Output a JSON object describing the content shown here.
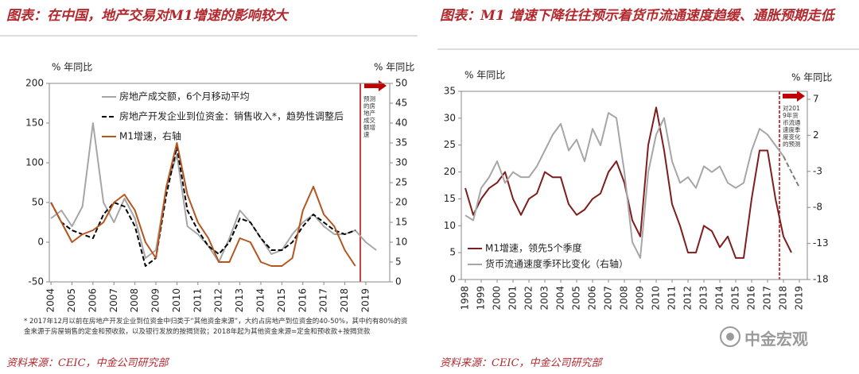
{
  "chart_data": [
    {
      "type": "line",
      "title": "图表：在中国，地产交易对M1增速的影响较大",
      "y_label": "% 年同比",
      "y2_label": "% 年同比",
      "annotation": "预测的房地产成交额增速",
      "footnote": "* 2017年12月以前在房地产开发企业到位资金中归类于“其他资金来源”，大约占房地产到位资金的40-50%，其中约有80%的资金来源于房屋销售的定金和预收款，以及银行发放的按揭贷款；2018年起为其他资金来源=定金和预收款+按揭贷款",
      "source": "资料来源：CEIC，中金公司研究部",
      "x": [
        2004,
        2004.5,
        2005,
        2005.5,
        2006,
        2006.5,
        2007,
        2007.5,
        2008,
        2008.5,
        2009,
        2009.5,
        2010,
        2010.5,
        2011,
        2011.5,
        2012,
        2012.5,
        2013,
        2013.5,
        2014,
        2014.5,
        2015,
        2015.5,
        2016,
        2016.5,
        2017,
        2017.5,
        2018,
        2018.5,
        2019,
        2019.5
      ],
      "xlim": [
        2003.92,
        2020.14
      ],
      "xticks": [
        2004,
        2005,
        2006,
        2007,
        2008,
        2009,
        2010,
        2011,
        2012,
        2013,
        2014,
        2015,
        2016,
        2017,
        2018,
        2019
      ],
      "ylim": [
        -50,
        200
      ],
      "yticks": [
        -50,
        0,
        50,
        100,
        150,
        200
      ],
      "y2lim": [
        0,
        50
      ],
      "y2ticks": [
        0,
        5,
        10,
        15,
        20,
        25,
        30,
        35,
        40,
        45,
        50
      ],
      "series": [
        {
          "name": "房地产成交额，6个月移动平均",
          "color": "#a6a6a6",
          "values": [
            30,
            40,
            20,
            45,
            150,
            50,
            25,
            55,
            30,
            -20,
            -10,
            70,
            110,
            20,
            10,
            -5,
            -25,
            5,
            40,
            25,
            5,
            -15,
            -10,
            10,
            25,
            35,
            20,
            10,
            10,
            15,
            0,
            -10
          ]
        },
        {
          "name": "房地产开发企业到位资金：销售收入*，趋势性调整后",
          "color": "#000000",
          "dash": true,
          "values": [
            50,
            25,
            15,
            10,
            5,
            35,
            50,
            45,
            20,
            -30,
            -20,
            60,
            120,
            40,
            15,
            -5,
            -15,
            0,
            30,
            25,
            5,
            -10,
            -10,
            0,
            20,
            35,
            25,
            15,
            10,
            15,
            null,
            null
          ]
        },
        {
          "name": "M1增速，右轴",
          "color": "#b5561f",
          "axis": "y2",
          "values": [
            20,
            15,
            10,
            12,
            13,
            15,
            20,
            22,
            18,
            10,
            6,
            24,
            35,
            22,
            15,
            11,
            5,
            5,
            11,
            10,
            5,
            4,
            4,
            6,
            18,
            24,
            17,
            14,
            8,
            4,
            null,
            null
          ]
        }
      ]
    },
    {
      "type": "line",
      "title": "图表：M1 增速下降往往预示着货币流通速度趋缓、通胀预期走低",
      "y_label": "% 年同比",
      "y2_label": "% 年同比",
      "annotation": "对2019年货币流通速度季度变化的预测",
      "source": "资料来源：CEIC，中金公司研究部",
      "x": [
        1998,
        1998.5,
        1999,
        1999.5,
        2000,
        2000.5,
        2001,
        2001.5,
        2002,
        2002.5,
        2003,
        2003.5,
        2004,
        2004.5,
        2005,
        2005.5,
        2006,
        2006.5,
        2007,
        2007.5,
        2008,
        2008.5,
        2009,
        2009.5,
        2010,
        2010.5,
        2011,
        2011.5,
        2012,
        2012.5,
        2013,
        2013.5,
        2014,
        2014.5,
        2015,
        2015.5,
        2016,
        2016.5,
        2017,
        2017.5,
        2018,
        2018.5,
        2019
      ],
      "xlim": [
        1997.75,
        2019.5
      ],
      "xticks": [
        1998,
        1999,
        2000,
        2001,
        2002,
        2003,
        2004,
        2005,
        2006,
        2007,
        2008,
        2009,
        2010,
        2011,
        2012,
        2013,
        2014,
        2015,
        2016,
        2017,
        2018,
        2019
      ],
      "ylim": [
        0,
        35
      ],
      "yticks": [
        0,
        5,
        10,
        15,
        20,
        25,
        30,
        35
      ],
      "y2lim": [
        -18,
        8.1
      ],
      "y2ticks": [
        -18,
        -13,
        -8,
        -3,
        2,
        7
      ],
      "series": [
        {
          "name": "M1增速，领先5个季度",
          "color": "#7f1d1d",
          "values": [
            17,
            12,
            15,
            17,
            18,
            20,
            15,
            12,
            15,
            16,
            20,
            19,
            19,
            14,
            12,
            13,
            15,
            16,
            20,
            22,
            18,
            11,
            8,
            25,
            32,
            24,
            14,
            10,
            5,
            5,
            10,
            9,
            6,
            8,
            4,
            4,
            15,
            24,
            24,
            15,
            8,
            5,
            null
          ]
        },
        {
          "name": "货币流通速度季环比变化（右轴）",
          "color": "#a6a6a6",
          "axis": "y2",
          "values": [
            -9.1,
            -9.8,
            -5.3,
            -3.8,
            -1.6,
            -4.6,
            -3.1,
            -3.8,
            -3.8,
            -2.3,
            -0.1,
            2.1,
            3.6,
            -0.1,
            1.4,
            -1.6,
            2.9,
            0.6,
            5.1,
            4.4,
            -3.1,
            -12.8,
            -15.0,
            -3.1,
            2.1,
            4.4,
            -1.6,
            -4.6,
            -3.8,
            -5.3,
            -2.3,
            -3.1,
            -2.3,
            -4.6,
            -5.3,
            -4.6,
            -0.1,
            2.9,
            2.1,
            0.6,
            -0.9,
            null,
            null
          ]
        },
        {
          "color": "#7f7f7f",
          "axis": "y2",
          "dash": true,
          "values": [
            null,
            null,
            null,
            null,
            null,
            null,
            null,
            null,
            null,
            null,
            null,
            null,
            null,
            null,
            null,
            null,
            null,
            null,
            null,
            null,
            null,
            null,
            null,
            null,
            null,
            null,
            null,
            null,
            null,
            null,
            null,
            null,
            null,
            null,
            null,
            null,
            null,
            null,
            null,
            null,
            -0.9,
            -3.1,
            -5.2
          ]
        }
      ]
    }
  ],
  "watermark": "中金宏观"
}
